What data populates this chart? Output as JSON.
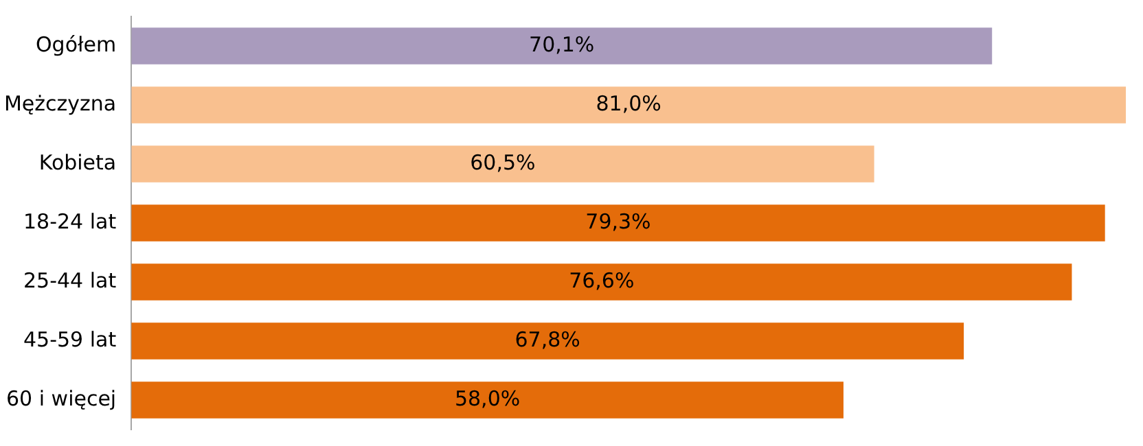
{
  "chart_data": {
    "type": "bar",
    "orientation": "horizontal",
    "categories": [
      "Ogółem",
      "Mężczyzna",
      "Kobieta",
      "18-24 lat",
      "25-44 lat",
      "45-59 lat",
      "60 i więcej"
    ],
    "values": [
      70.1,
      81.0,
      60.5,
      79.3,
      76.6,
      67.8,
      58.0
    ],
    "colors": [
      "#a99bbd",
      "#f9c08f",
      "#f9c08f",
      "#e46c0a",
      "#e46c0a",
      "#e46c0a",
      "#e46c0a"
    ],
    "value_labels": [
      "70,1%",
      "81,0%",
      "60,5%",
      "79,3%",
      "76,6%",
      "67,8%",
      "58,0%"
    ],
    "xlim": [
      0,
      81.5
    ],
    "grid": false,
    "legend": false,
    "tick_labels": "y"
  }
}
